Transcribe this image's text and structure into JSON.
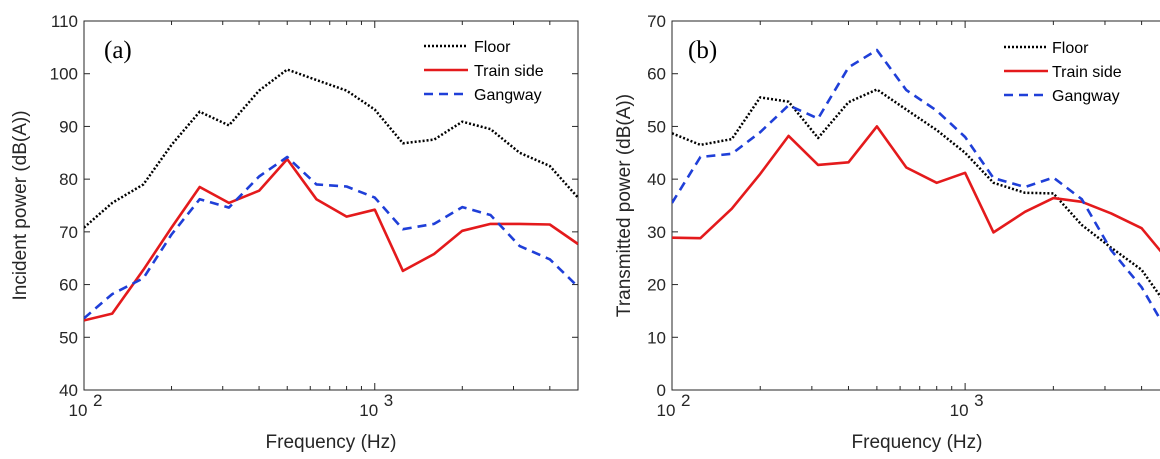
{
  "chart_data": [
    {
      "type": "line",
      "panel_label": "(a)",
      "xlabel": "Frequency (Hz)",
      "ylabel": "Incident power (dB(A))",
      "xscale": "log",
      "xlim": [
        100,
        5000
      ],
      "ylim": [
        40,
        110
      ],
      "yticks": [
        "40",
        "50",
        "60",
        "70",
        "80",
        "90",
        "100",
        "110"
      ],
      "xticks": [
        {
          "base": "10",
          "exp": "2"
        },
        {
          "base": "10",
          "exp": "3"
        }
      ],
      "legend_position": "top-right",
      "x": [
        100,
        125,
        160,
        200,
        250,
        315,
        400,
        500,
        630,
        800,
        1000,
        1250,
        1600,
        2000,
        2500,
        3150,
        4000,
        5000
      ],
      "series": [
        {
          "name": "Floor",
          "color": "#000000",
          "style": "dotted",
          "values": [
            70.8,
            75.5,
            79,
            86.5,
            92.8,
            90.2,
            96.8,
            100.8,
            98.8,
            96.8,
            93.2,
            86.8,
            87.5,
            90.9,
            89.5,
            85,
            82.5,
            76.5
          ]
        },
        {
          "name": "Train side",
          "color": "#e41a1c",
          "style": "solid",
          "values": [
            53.2,
            54.5,
            62.8,
            70.8,
            78.5,
            75.5,
            77.8,
            83.8,
            76.2,
            72.9,
            74.2,
            62.6,
            65.8,
            70.2,
            71.5,
            71.5,
            71.4,
            67.7
          ]
        },
        {
          "name": "Gangway",
          "color": "#1f3fd8",
          "style": "dashed",
          "values": [
            53.6,
            58.2,
            61.2,
            69.5,
            76.2,
            74.6,
            80.5,
            84.2,
            79,
            78.6,
            76.5,
            70.5,
            71.5,
            74.7,
            73.2,
            67.3,
            64.8,
            59.6
          ]
        }
      ]
    },
    {
      "type": "line",
      "panel_label": "(b)",
      "xlabel": "Frequency (Hz)",
      "ylabel": "Transmitted power (dB(A))",
      "xscale": "log",
      "xlim": [
        100,
        5000
      ],
      "ylim": [
        0,
        70
      ],
      "yticks": [
        "0",
        "10",
        "20",
        "30",
        "40",
        "50",
        "60",
        "70"
      ],
      "xticks": [
        {
          "base": "10",
          "exp": "2"
        },
        {
          "base": "10",
          "exp": "3"
        }
      ],
      "legend_position": "top-right",
      "x": [
        100,
        125,
        160,
        200,
        250,
        315,
        400,
        500,
        630,
        800,
        1000,
        1250,
        1600,
        2000,
        2500,
        3150,
        4000,
        5000
      ],
      "series": [
        {
          "name": "Floor",
          "color": "#000000",
          "style": "dotted",
          "values": [
            48.7,
            46.5,
            47.6,
            55.5,
            54.7,
            47.8,
            54.6,
            57,
            53.2,
            49.3,
            45,
            39.3,
            37.4,
            37.3,
            31.3,
            27,
            22.8,
            15.2
          ]
        },
        {
          "name": "Train side",
          "color": "#e41a1c",
          "style": "solid",
          "values": [
            28.9,
            28.8,
            34.4,
            41,
            48.2,
            42.7,
            43.2,
            50,
            42.2,
            39.3,
            41.2,
            29.9,
            33.8,
            36.4,
            35.7,
            33.5,
            30.7,
            24.2
          ]
        },
        {
          "name": "Gangway",
          "color": "#1f3fd8",
          "style": "dashed",
          "values": [
            35.5,
            44.2,
            44.8,
            48.9,
            54,
            51.5,
            61.2,
            64.5,
            56.9,
            53,
            48,
            40.2,
            38.5,
            40.3,
            36.2,
            26.5,
            19.5,
            10.2
          ]
        }
      ]
    }
  ]
}
